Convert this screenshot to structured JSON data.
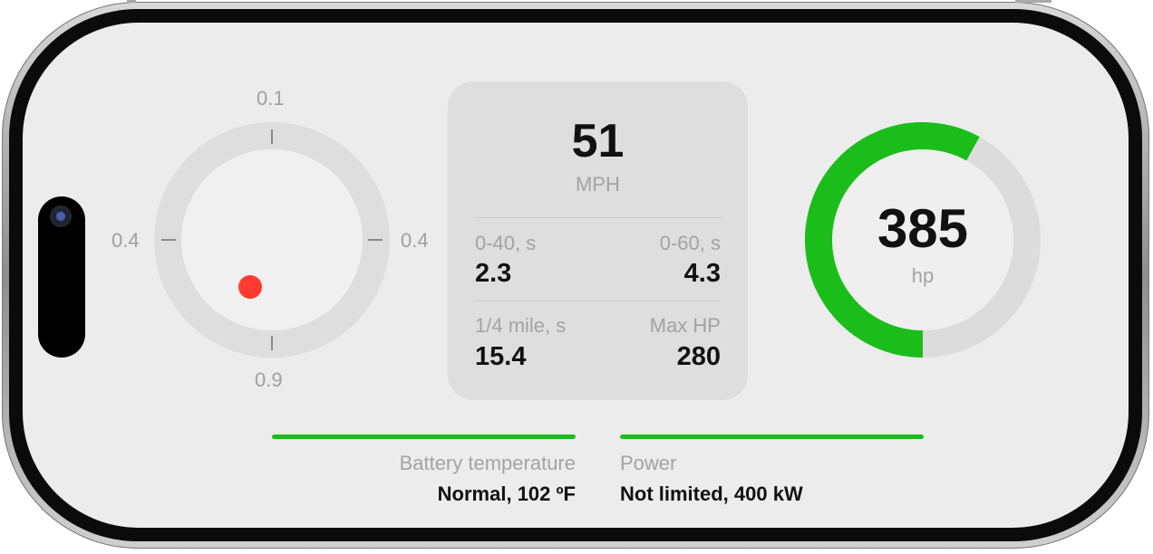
{
  "balance": {
    "top": "0.1",
    "bottom": "0.9",
    "left": "0.4",
    "right": "0.4",
    "dot_color": "#ff3b30"
  },
  "speed": {
    "value": "51",
    "unit": "MPH",
    "stats": [
      {
        "label": "0-40, s",
        "value": "2.3"
      },
      {
        "label": "0-60, s",
        "value": "4.3"
      },
      {
        "label": "1/4 mile, s",
        "value": "15.4"
      },
      {
        "label": "Max HP",
        "value": "280"
      }
    ]
  },
  "power_gauge": {
    "value": "385",
    "unit": "hp",
    "fill_fraction": 0.58,
    "color": "#1bbd1b"
  },
  "status": {
    "battery": {
      "label": "Battery temperature",
      "value": "Normal, 102 ºF",
      "level": 1.0
    },
    "power": {
      "label": "Power",
      "value": "Not limited, 400 kW",
      "level": 1.0
    },
    "accent": "#1bbd1b"
  }
}
